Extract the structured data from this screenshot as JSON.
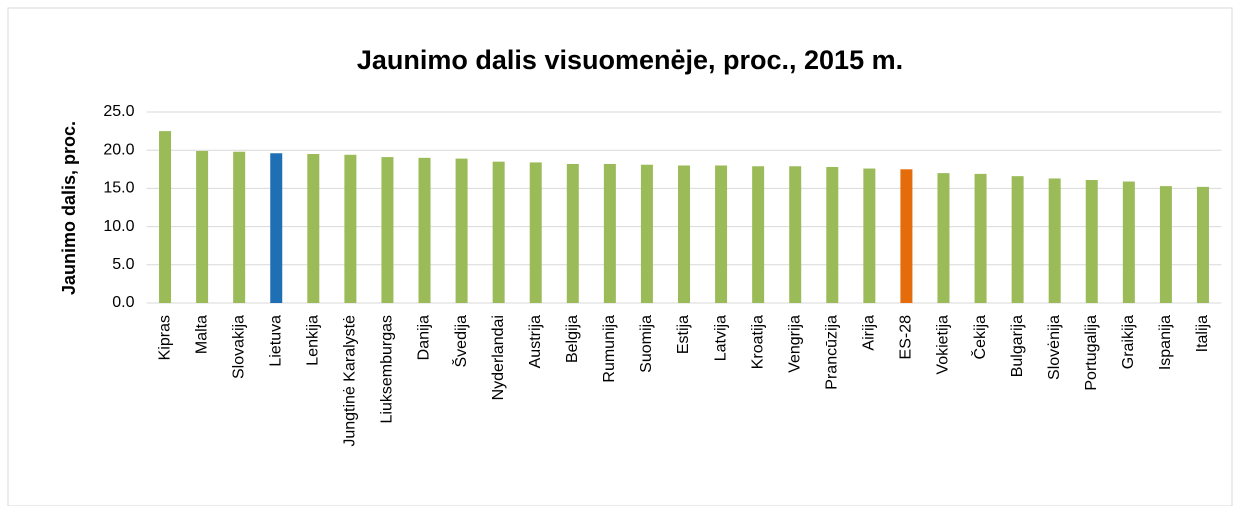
{
  "chart_data": {
    "type": "bar",
    "title": "Jaunimo dalis visuomenėje, proc., 2015 m.",
    "y_label": "Jaunimo dalis, proc.",
    "categories": [
      "Kipras",
      "Malta",
      "Slovakija",
      "Lietuva",
      "Lenkija",
      "Jungtinė Karalystė",
      "Liuksemburgas",
      "Danija",
      "Švedija",
      "Nyderlandai",
      "Austrija",
      "Belgija",
      "Rumunija",
      "Suomija",
      "Estija",
      "Latvija",
      "Kroatija",
      "Vengrija",
      "Prancūzija",
      "Airija",
      "ES-28",
      "Vokietija",
      "Čekija",
      "Bulgarija",
      "Slovėnija",
      "Portugalija",
      "Graikija",
      "Ispanija",
      "Italija"
    ],
    "values": [
      22.5,
      19.9,
      19.8,
      19.6,
      19.5,
      19.4,
      19.1,
      19.0,
      18.9,
      18.5,
      18.4,
      18.2,
      18.2,
      18.1,
      18.0,
      18.0,
      17.9,
      17.9,
      17.8,
      17.6,
      17.5,
      17.0,
      16.9,
      16.6,
      16.3,
      16.1,
      15.9,
      15.3,
      15.2
    ],
    "colors": [
      "#9bbb59",
      "#9bbb59",
      "#9bbb59",
      "#1f6fb5",
      "#9bbb59",
      "#9bbb59",
      "#9bbb59",
      "#9bbb59",
      "#9bbb59",
      "#9bbb59",
      "#9bbb59",
      "#9bbb59",
      "#9bbb59",
      "#9bbb59",
      "#9bbb59",
      "#9bbb59",
      "#9bbb59",
      "#9bbb59",
      "#9bbb59",
      "#9bbb59",
      "#e46c0a",
      "#9bbb59",
      "#9bbb59",
      "#9bbb59",
      "#9bbb59",
      "#9bbb59",
      "#9bbb59",
      "#9bbb59",
      "#9bbb59"
    ],
    "ylim": [
      0,
      25
    ],
    "yticks": [
      {
        "value": 0,
        "label": "0.0"
      },
      {
        "value": 5,
        "label": "5.0"
      },
      {
        "value": 10,
        "label": "10.0"
      },
      {
        "value": 15,
        "label": "15.0"
      },
      {
        "value": 20,
        "label": "20.0"
      },
      {
        "value": 25,
        "label": "25.0"
      }
    ],
    "grid": true
  }
}
